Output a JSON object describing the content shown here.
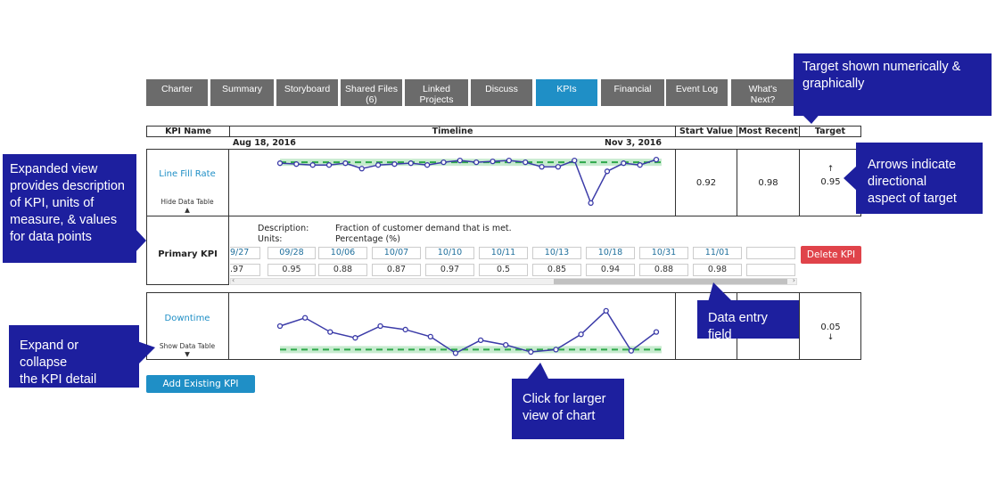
{
  "tabs": [
    {
      "label": "Charter",
      "active": false
    },
    {
      "label": "Summary",
      "active": false
    },
    {
      "label": "Storyboard",
      "active": false
    },
    {
      "label": "Shared Files\n(6)",
      "active": false
    },
    {
      "label": "Linked\nProjects",
      "active": false
    },
    {
      "label": "Discuss",
      "active": false
    },
    {
      "label": "KPIs",
      "active": true
    },
    {
      "label": "Financial",
      "active": false
    },
    {
      "label": "Event Log",
      "active": false
    },
    {
      "label": "What's\nNext?",
      "active": false
    }
  ],
  "table": {
    "headers": {
      "kpi_name": "KPI Name",
      "timeline": "Timeline",
      "start_value": "Start Value",
      "most_recent": "Most Recent",
      "target": "Target"
    },
    "timeline_start": "Aug 18, 2016",
    "timeline_end": "Nov 3, 2016"
  },
  "kpis": [
    {
      "name": "Line Fill Rate",
      "toggle_label": "Hide Data Table",
      "toggle_arrow": "▲",
      "start_value": "0.92",
      "most_recent": "0.98",
      "target_arrow": "↑",
      "target": "0.95"
    },
    {
      "name": "Downtime",
      "toggle_label": "Show Data Table",
      "toggle_arrow": "▼",
      "target": "0.05",
      "target_arrow": "↓"
    }
  ],
  "detail": {
    "kpi_level": "Primary KPI",
    "description_label": "Description:",
    "description": "Fraction of customer demand that is met.",
    "units_label": "Units:",
    "units": "Percentage (%)",
    "dates": [
      "9/27",
      "09/28",
      "10/06",
      "10/07",
      "10/10",
      "10/11",
      "10/13",
      "10/18",
      "10/31",
      "11/01",
      ""
    ],
    "values": [
      ".97",
      "0.95",
      "0.88",
      "0.87",
      "0.97",
      "0.5",
      "0.85",
      "0.94",
      "0.88",
      "0.98",
      ""
    ],
    "delete_label": "Delete KPI",
    "scroll_left": "‹",
    "scroll_right": "›"
  },
  "add_button": "Add Existing KPI",
  "callouts": {
    "target": "Target shown numerically &\ngraphically",
    "expanded": "Expanded view\nprovides description\nof KPI, units of\nmeasure, & values\nfor data points",
    "arrows": "Arrows indicate\ndirectional\naspect of target",
    "data_entry": "Data entry field",
    "expand_collapse": "Expand or collapse\nthe KPI detail",
    "click_chart": "Click for larger\nview of chart"
  },
  "colors": {
    "tab_bg": "#6b6b6b",
    "tab_active": "#1f8fc6",
    "line": "#3b3ba8",
    "target_dash": "#2ea84a",
    "target_band": "#c7ebcf",
    "callout_bg": "#1d1f9e",
    "delete_bg": "#e0434a"
  },
  "chart_data": [
    {
      "type": "line",
      "kpi": "Line Fill Rate",
      "ylim": [
        0.4,
        1.05
      ],
      "target": 0.95,
      "series": [
        {
          "values": [
            0.94,
            0.93,
            0.92,
            0.92,
            0.94,
            0.88,
            0.92,
            0.93,
            0.94,
            0.92,
            0.95,
            0.97,
            0.95,
            0.96,
            0.97,
            0.95,
            0.9,
            0.9,
            0.97,
            0.5,
            0.85,
            0.94,
            0.92,
            0.98
          ]
        }
      ]
    },
    {
      "type": "line",
      "kpi": "Downtime",
      "ylim": [
        0,
        0.5
      ],
      "target": 0.05,
      "series": [
        {
          "values": [
            0.25,
            0.32,
            0.2,
            0.15,
            0.25,
            0.22,
            0.16,
            0.02,
            0.13,
            0.09,
            0.03,
            0.05,
            0.18,
            0.38,
            0.04,
            0.2
          ]
        }
      ]
    }
  ]
}
